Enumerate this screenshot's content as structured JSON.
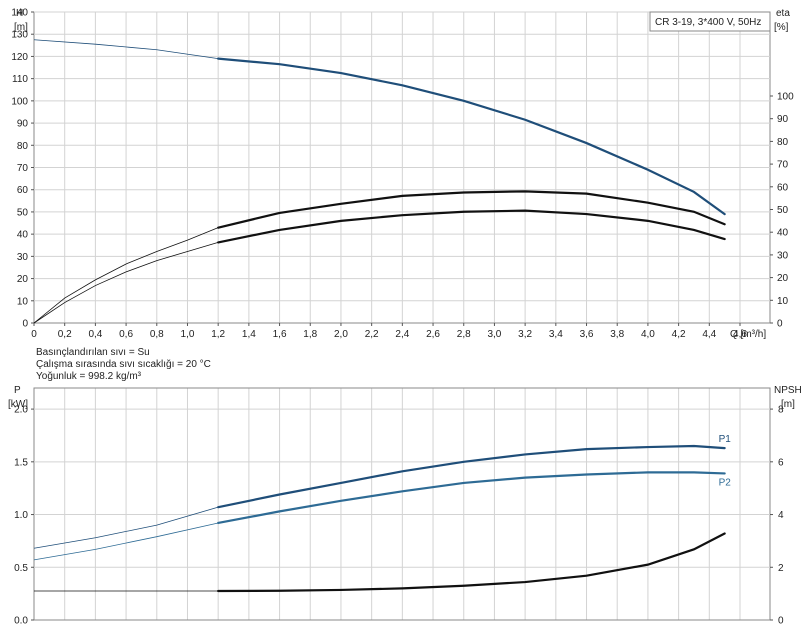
{
  "chart_data": [
    {
      "type": "line",
      "legend_box": "CR 3-19, 3*400 V, 50Hz",
      "ylabel_left": "H",
      "ylabel_left_unit": "[m]",
      "ylabel_right": "eta",
      "ylabel_right_unit": "[%]",
      "xlabel": "Q [m³/h]",
      "xlim": [
        0,
        4.6
      ],
      "ylim_left": [
        0,
        140
      ],
      "ylim_right": [
        0,
        100
      ],
      "grid": true,
      "x_ticks": [
        "0",
        "0,2",
        "0,4",
        "0,6",
        "0,8",
        "1,0",
        "1,2",
        "1,4",
        "1,6",
        "1,8",
        "2,0",
        "2,2",
        "2,4",
        "2,6",
        "2,8",
        "3,0",
        "3,2",
        "3,4",
        "3,6",
        "3,8",
        "4,0",
        "4,2",
        "4,4",
        "4,6"
      ],
      "y_ticks_left": [
        "0",
        "10",
        "20",
        "30",
        "40",
        "50",
        "60",
        "70",
        "80",
        "90",
        "100",
        "110",
        "120",
        "130",
        "140"
      ],
      "y_ticks_right": [
        "0",
        "10",
        "20",
        "30",
        "40",
        "50",
        "60",
        "70",
        "80",
        "90",
        "100"
      ],
      "series": [
        {
          "role": "head",
          "color": "#1f4e79",
          "thin_points": [
            [
              0,
              127.5
            ],
            [
              0.4,
              125.5
            ],
            [
              0.8,
              123
            ],
            [
              1.2,
              119
            ]
          ],
          "bold_points": [
            [
              1.2,
              119
            ],
            [
              1.6,
              116.5
            ],
            [
              2.0,
              112.5
            ],
            [
              2.4,
              107
            ],
            [
              2.8,
              100
            ],
            [
              3.2,
              91.5
            ],
            [
              3.6,
              81
            ],
            [
              4.0,
              69
            ],
            [
              4.3,
              59
            ],
            [
              4.5,
              49
            ]
          ]
        },
        {
          "role": "efficiency-upper",
          "color": "#111111",
          "thin_points": [
            [
              0,
              0
            ],
            [
              0.2,
              11
            ],
            [
              0.4,
              19
            ],
            [
              0.6,
              26
            ],
            [
              0.8,
              31.5
            ],
            [
              1.0,
              36.5
            ],
            [
              1.2,
              42
            ]
          ],
          "bold_points": [
            [
              1.2,
              42
            ],
            [
              1.6,
              48.5
            ],
            [
              2.0,
              52.5
            ],
            [
              2.4,
              56
            ],
            [
              2.8,
              57.5
            ],
            [
              3.2,
              58
            ],
            [
              3.6,
              57
            ],
            [
              4.0,
              53
            ],
            [
              4.3,
              49
            ],
            [
              4.5,
              43.5
            ]
          ]
        },
        {
          "role": "efficiency-lower",
          "color": "#111111",
          "thin_points": [
            [
              0,
              0
            ],
            [
              0.2,
              9
            ],
            [
              0.4,
              16.5
            ],
            [
              0.6,
              22.5
            ],
            [
              0.8,
              27.5
            ],
            [
              1.0,
              31.5
            ],
            [
              1.2,
              35.5
            ]
          ],
          "bold_points": [
            [
              1.2,
              35.5
            ],
            [
              1.6,
              41
            ],
            [
              2.0,
              45
            ],
            [
              2.4,
              47.5
            ],
            [
              2.8,
              49
            ],
            [
              3.2,
              49.5
            ],
            [
              3.6,
              48
            ],
            [
              4.0,
              45
            ],
            [
              4.3,
              41
            ],
            [
              4.5,
              37
            ]
          ]
        }
      ]
    },
    {
      "type": "line",
      "ylabel_left": "P",
      "ylabel_left_unit": "[kW]",
      "ylabel_right": "NPSH",
      "ylabel_right_unit": "[m]",
      "xlim": [
        0,
        4.6
      ],
      "ylim_left": [
        0,
        2.2
      ],
      "ylim_right": [
        0,
        8.8
      ],
      "grid": true,
      "y_ticks_left": [
        "0.0",
        "0.5",
        "1.0",
        "1.5",
        "2.0"
      ],
      "y_ticks_right": [
        "0",
        "2",
        "4",
        "6",
        "8"
      ],
      "series": [
        {
          "name": "P1",
          "color": "#1f4e79",
          "thin_points": [
            [
              0,
              0.68
            ],
            [
              0.4,
              0.78
            ],
            [
              0.8,
              0.9
            ],
            [
              1.2,
              1.07
            ]
          ],
          "bold_points": [
            [
              1.2,
              1.07
            ],
            [
              1.6,
              1.19
            ],
            [
              2.0,
              1.3
            ],
            [
              2.4,
              1.41
            ],
            [
              2.8,
              1.5
            ],
            [
              3.2,
              1.57
            ],
            [
              3.6,
              1.62
            ],
            [
              4.0,
              1.64
            ],
            [
              4.3,
              1.65
            ],
            [
              4.5,
              1.63
            ]
          ]
        },
        {
          "name": "P2",
          "color": "#2e6b95",
          "thin_points": [
            [
              0,
              0.57
            ],
            [
              0.4,
              0.67
            ],
            [
              0.8,
              0.79
            ],
            [
              1.2,
              0.92
            ]
          ],
          "bold_points": [
            [
              1.2,
              0.92
            ],
            [
              1.6,
              1.03
            ],
            [
              2.0,
              1.13
            ],
            [
              2.4,
              1.22
            ],
            [
              2.8,
              1.3
            ],
            [
              3.2,
              1.35
            ],
            [
              3.6,
              1.38
            ],
            [
              4.0,
              1.4
            ],
            [
              4.3,
              1.4
            ],
            [
              4.5,
              1.39
            ]
          ]
        },
        {
          "role": "npsh",
          "color": "#111111",
          "thin_points": [
            [
              0,
              1.1
            ],
            [
              1.2,
              1.1
            ]
          ],
          "bold_points": [
            [
              1.2,
              1.1
            ],
            [
              1.6,
              1.11
            ],
            [
              2.0,
              1.14
            ],
            [
              2.4,
              1.2
            ],
            [
              2.8,
              1.3
            ],
            [
              3.2,
              1.44
            ],
            [
              3.6,
              1.68
            ],
            [
              4.0,
              2.1
            ],
            [
              4.3,
              2.68
            ],
            [
              4.5,
              3.28
            ]
          ]
        }
      ]
    }
  ],
  "notes": [
    "Basınçlandırılan sıvı = Su",
    "Çalışma sırasında sıvı sıcaklığı = 20 °C",
    "Yoğunluk = 998.2 kg/m³"
  ]
}
